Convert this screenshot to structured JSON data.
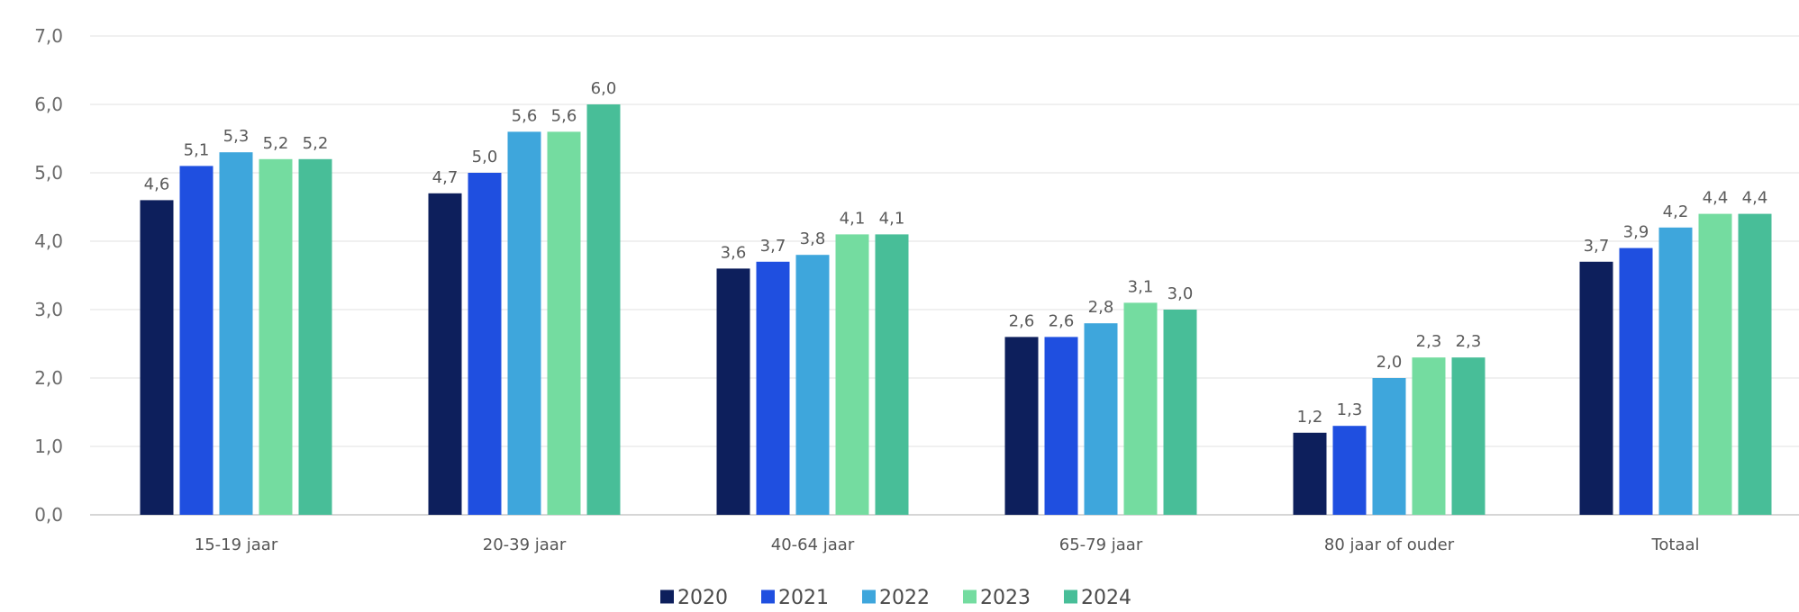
{
  "chart_data": {
    "type": "bar",
    "categories": [
      "15-19 jaar",
      "20-39 jaar",
      "40-64 jaar",
      "65-79 jaar",
      "80 jaar of ouder",
      "Totaal"
    ],
    "series": [
      {
        "name": "2020",
        "color": "#0d1f5c",
        "values": [
          4.6,
          4.7,
          3.6,
          2.6,
          1.2,
          3.7
        ]
      },
      {
        "name": "2021",
        "color": "#1f4fe0",
        "values": [
          5.1,
          5.0,
          3.7,
          2.6,
          1.3,
          3.9
        ]
      },
      {
        "name": "2022",
        "color": "#3ea6dc",
        "values": [
          5.3,
          5.6,
          3.8,
          2.8,
          2.0,
          4.2
        ]
      },
      {
        "name": "2023",
        "color": "#74dca0",
        "values": [
          5.2,
          5.6,
          4.1,
          3.1,
          2.3,
          4.4
        ]
      },
      {
        "name": "2024",
        "color": "#48be98",
        "values": [
          5.2,
          6.0,
          4.1,
          3.0,
          2.3,
          4.4
        ]
      }
    ],
    "ylim": [
      0,
      7
    ],
    "yticks": [
      0,
      1,
      2,
      3,
      4,
      5,
      6,
      7
    ],
    "ytick_labels": [
      "0,0",
      "1,0",
      "2,0",
      "3,0",
      "4,0",
      "5,0",
      "6,0",
      "7,0"
    ],
    "data_labels": [
      [
        "4,6",
        "4,7",
        "3,6",
        "2,6",
        "1,2",
        "3,7"
      ],
      [
        "5,1",
        "5,0",
        "3,7",
        "2,6",
        "1,3",
        "3,9"
      ],
      [
        "5,3",
        "5,6",
        "3,8",
        "2,8",
        "2,0",
        "4,2"
      ],
      [
        "5,2",
        "5,6",
        "4,1",
        "3,1",
        "2,3",
        "4,4"
      ],
      [
        "5,2",
        "6,0",
        "4,1",
        "3,0",
        "2,3",
        "4,4"
      ]
    ],
    "grid": true,
    "legend": "bottom-center",
    "gridline_color": "#e2e2e2",
    "axis_color": "#c8c8c8"
  }
}
